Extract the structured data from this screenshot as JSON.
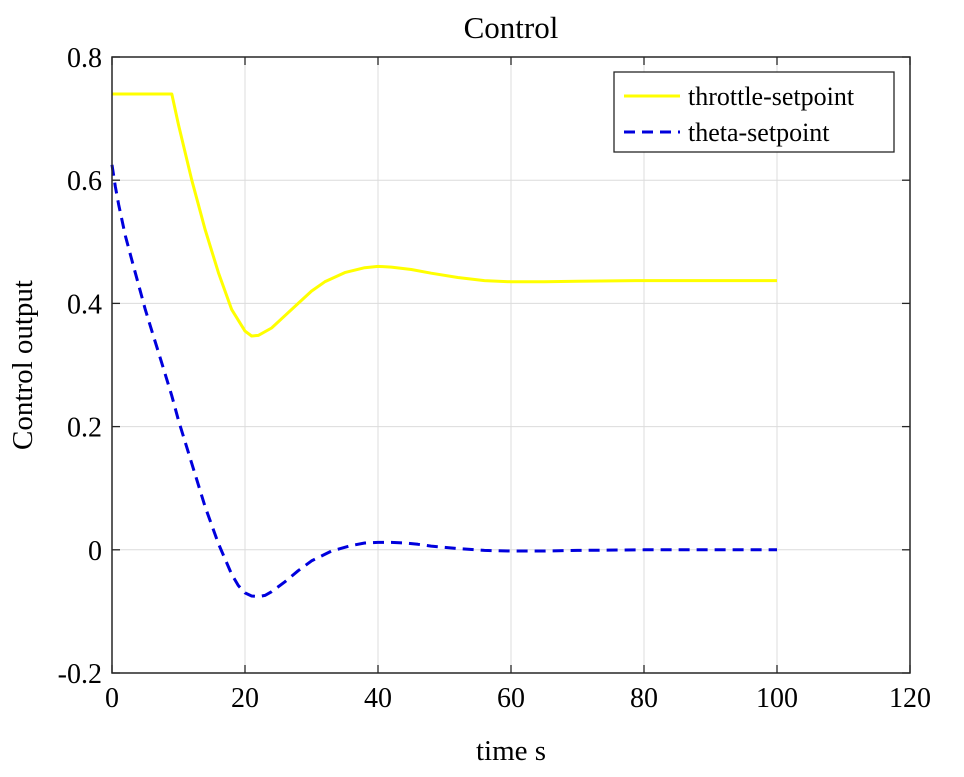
{
  "chart_data": {
    "type": "line",
    "title": "Control",
    "xlabel": "time s",
    "ylabel": "Control output",
    "xlim": [
      0,
      120
    ],
    "ylim": [
      -0.2,
      0.8
    ],
    "xticks": [
      0,
      20,
      40,
      60,
      80,
      100,
      120
    ],
    "yticks": [
      -0.2,
      0,
      0.2,
      0.4,
      0.6,
      0.8
    ],
    "xtick_labels": [
      "0",
      "20",
      "40",
      "60",
      "80",
      "100",
      "120"
    ],
    "ytick_labels": [
      "-0.2",
      "0",
      "0.2",
      "0.4",
      "0.6",
      "0.8"
    ],
    "grid": true,
    "legend": "top-right",
    "series": [
      {
        "name": "throttle-setpoint",
        "color": "#ffff00",
        "style": "solid",
        "x": [
          0,
          9,
          10,
          12,
          14,
          16,
          18,
          20,
          21,
          22,
          24,
          26,
          28,
          30,
          32,
          35,
          38,
          40,
          42,
          45,
          48,
          52,
          56,
          60,
          65,
          70,
          80,
          90,
          100
        ],
        "y": [
          0.74,
          0.74,
          0.69,
          0.6,
          0.52,
          0.45,
          0.39,
          0.355,
          0.347,
          0.348,
          0.36,
          0.38,
          0.4,
          0.42,
          0.435,
          0.45,
          0.458,
          0.46,
          0.459,
          0.455,
          0.449,
          0.442,
          0.437,
          0.435,
          0.435,
          0.436,
          0.437,
          0.437,
          0.437
        ]
      },
      {
        "name": "theta-setpoint",
        "color": "#0000dd",
        "style": "dashed",
        "x": [
          0,
          0.5,
          1,
          2,
          3,
          4,
          5,
          6,
          7,
          8,
          9,
          10,
          12,
          14,
          16,
          18,
          19,
          20,
          21,
          22,
          23,
          24,
          26,
          28,
          30,
          33,
          36,
          38,
          40,
          42,
          44,
          46,
          48,
          52,
          56,
          60,
          65,
          70,
          80,
          90,
          100
        ],
        "y": [
          0.625,
          0.59,
          0.56,
          0.51,
          0.47,
          0.43,
          0.39,
          0.355,
          0.32,
          0.285,
          0.25,
          0.21,
          0.14,
          0.07,
          0.01,
          -0.04,
          -0.058,
          -0.07,
          -0.075,
          -0.076,
          -0.074,
          -0.068,
          -0.052,
          -0.034,
          -0.018,
          -0.002,
          0.007,
          0.011,
          0.012,
          0.012,
          0.011,
          0.009,
          0.006,
          0.002,
          -0.001,
          -0.002,
          -0.002,
          -0.001,
          0,
          0,
          0
        ]
      }
    ]
  }
}
